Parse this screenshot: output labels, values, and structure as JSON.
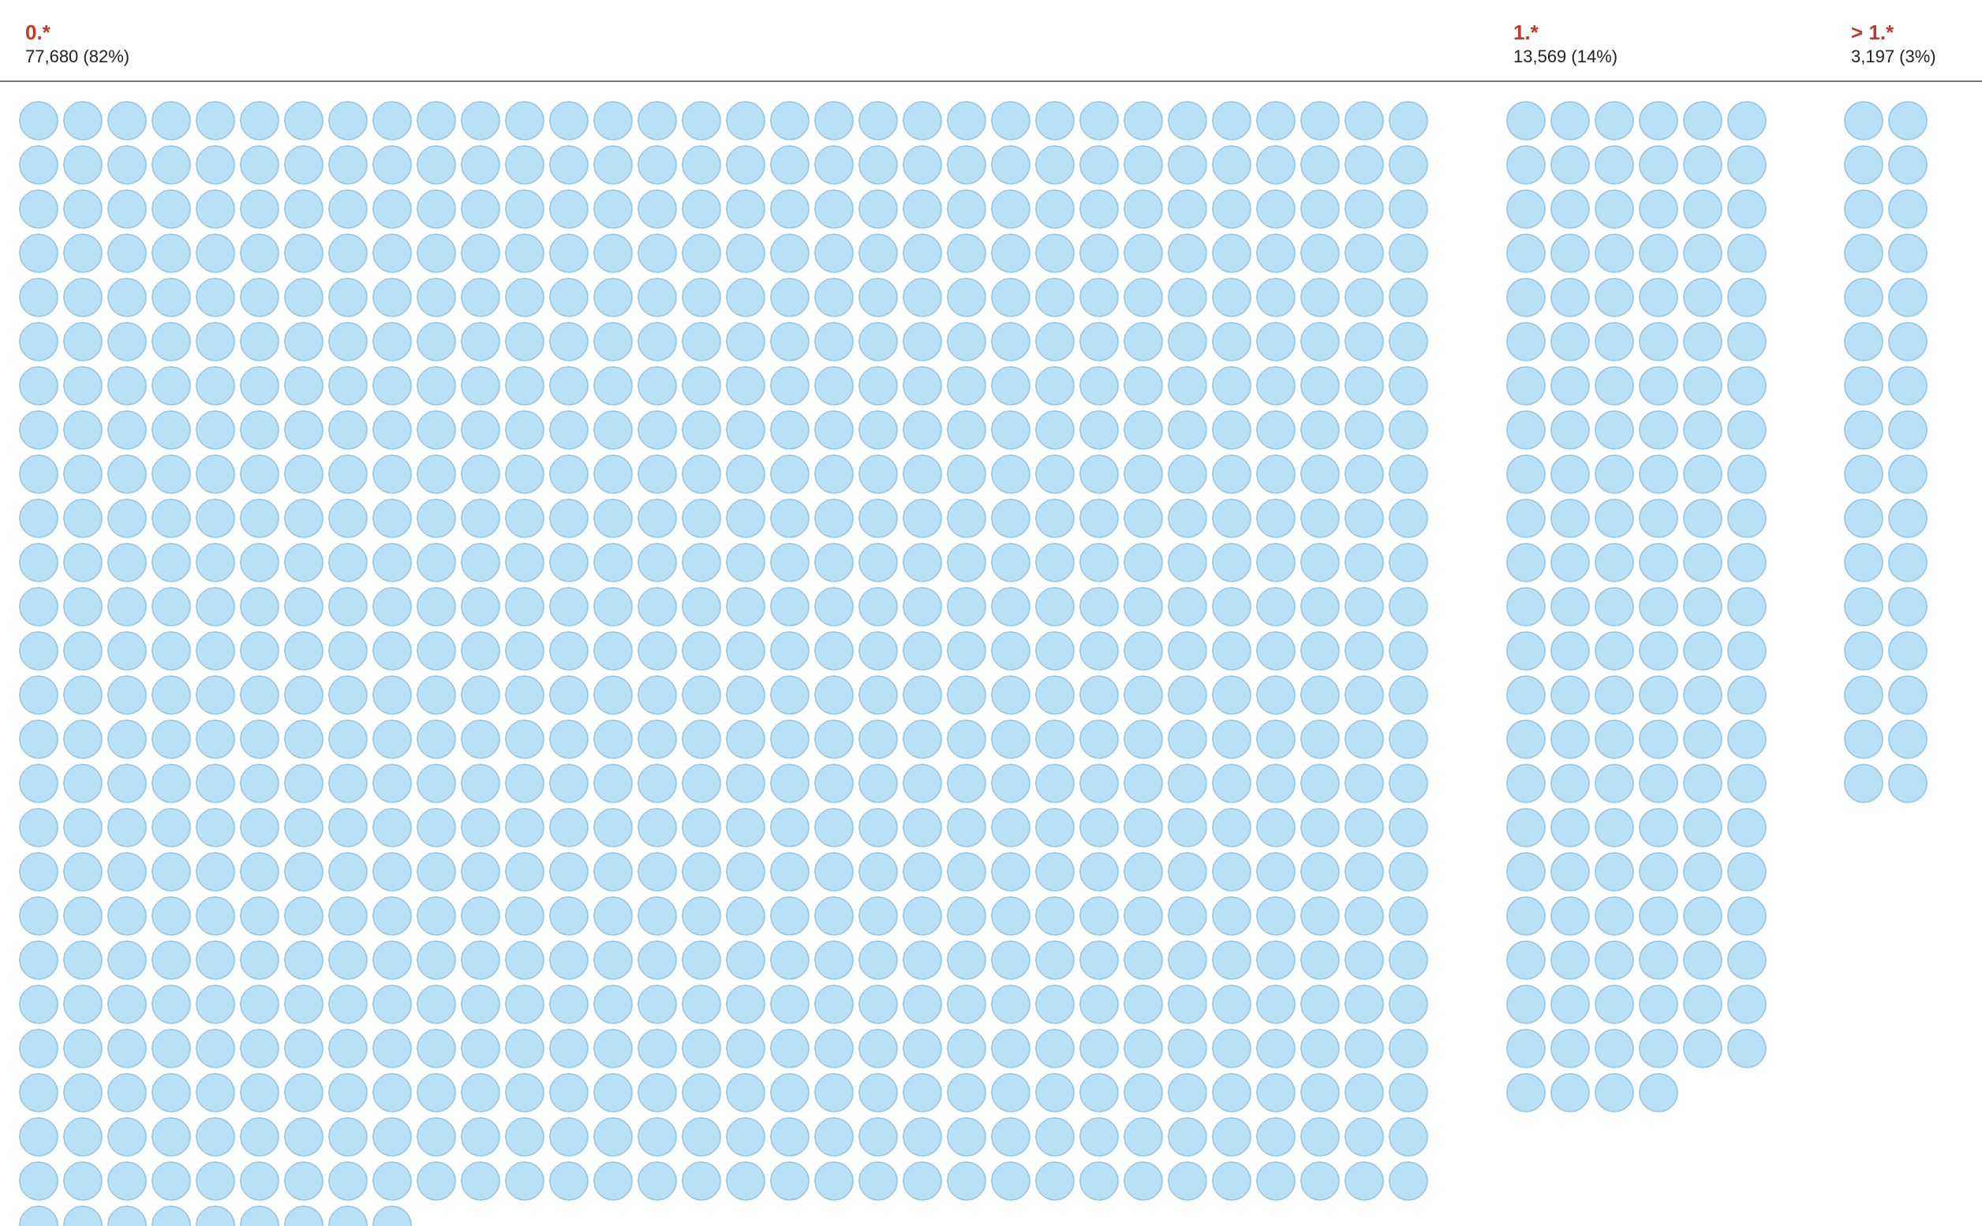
{
  "chart_data": {
    "type": "waffle",
    "title": "",
    "xlabel": "",
    "ylabel": "",
    "dots_per_column": [
      32,
      6,
      2
    ],
    "series": [
      {
        "name": "0.*",
        "value_label": "77,680 (82%)",
        "value": 77680,
        "percent": 82,
        "dots": 809
      },
      {
        "name": "1.*",
        "value_label": "13,569 (14%)",
        "value": 13569,
        "percent": 14,
        "dots": 136
      },
      {
        "name": "> 1.*",
        "value_label": "3,197 (3%)",
        "value": 3197,
        "percent": 3,
        "dots": 32
      }
    ],
    "grid": false
  },
  "colors": {
    "label": "#c0392b",
    "dot_fill": "#b8e1f7",
    "dot_stroke": "#94c5e2",
    "rule": "#777777",
    "text": "#222222"
  }
}
